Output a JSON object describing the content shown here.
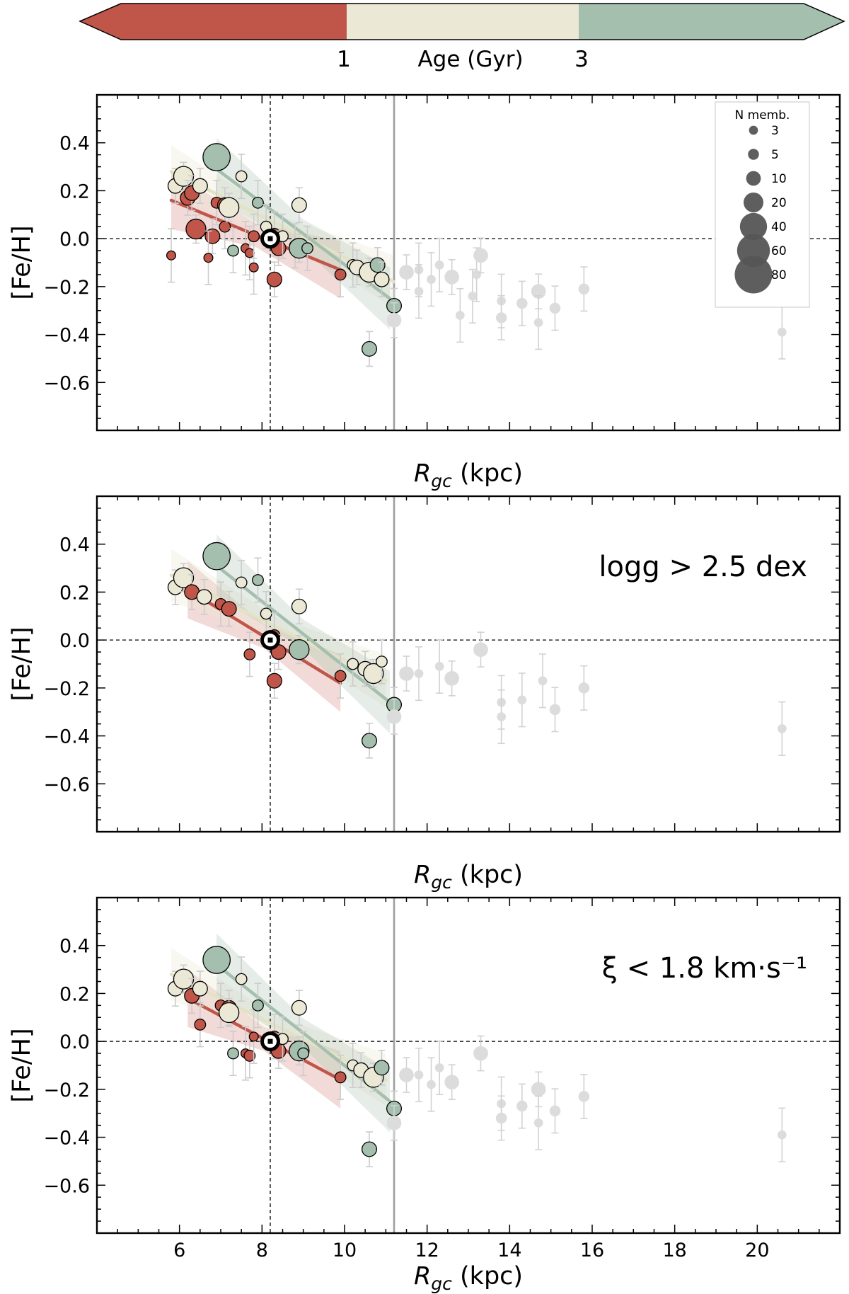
{
  "colors": {
    "young": "#c0564a",
    "intermediate": "#ebe9d5",
    "old": "#a4bfae",
    "outer": "#dcdcdc"
  },
  "colorbar": {
    "label": "Age (Gyr)",
    "ticks": [
      "1",
      "3"
    ]
  },
  "legend": {
    "title": "N memb.",
    "entries": [
      "3",
      "5",
      "10",
      "20",
      "40",
      "60",
      "80"
    ]
  },
  "chart_data": [
    {
      "type": "scatter",
      "panel": 1,
      "title": "",
      "annotation": "",
      "xlabel": "R_gc (kpc)",
      "ylabel": "[Fe/H]",
      "xlim": [
        4.0,
        22.0
      ],
      "ylim": [
        -0.8,
        0.6
      ],
      "xticks": [
        6,
        8,
        10,
        12,
        14,
        16,
        18,
        20
      ],
      "yticks": [
        0.4,
        0.2,
        0.0,
        -0.2,
        -0.4,
        -0.6
      ],
      "show_xticklabels": false,
      "sun_position": [
        8.2,
        0.0
      ],
      "outer_boundary_x": 11.2,
      "fits": [
        {
          "group": "young",
          "x": [
            5.8,
            9.9
          ],
          "y": [
            0.16,
            -0.13
          ]
        },
        {
          "group": "intermediate",
          "x": [
            5.8,
            11.2
          ],
          "y": [
            0.28,
            -0.18
          ]
        },
        {
          "group": "old",
          "x": [
            6.9,
            11.1
          ],
          "y": [
            0.29,
            -0.25
          ]
        }
      ],
      "points": [
        {
          "x": 5.8,
          "y": -0.07,
          "n": 3,
          "group": "young"
        },
        {
          "x": 5.9,
          "y": 0.22,
          "n": 10,
          "group": "intermediate"
        },
        {
          "x": 6.1,
          "y": 0.26,
          "n": 20,
          "group": "intermediate"
        },
        {
          "x": 6.2,
          "y": 0.17,
          "n": 10,
          "group": "young"
        },
        {
          "x": 6.3,
          "y": 0.19,
          "n": 10,
          "group": "young"
        },
        {
          "x": 6.5,
          "y": 0.22,
          "n": 10,
          "group": "intermediate"
        },
        {
          "x": 6.4,
          "y": 0.04,
          "n": 20,
          "group": "young"
        },
        {
          "x": 6.8,
          "y": 0.01,
          "n": 10,
          "group": "young"
        },
        {
          "x": 6.7,
          "y": -0.08,
          "n": 3,
          "group": "young"
        },
        {
          "x": 6.9,
          "y": 0.34,
          "n": 40,
          "group": "old"
        },
        {
          "x": 6.9,
          "y": 0.15,
          "n": 5,
          "group": "young"
        },
        {
          "x": 7.1,
          "y": 0.14,
          "n": 10,
          "group": "young"
        },
        {
          "x": 7.1,
          "y": 0.05,
          "n": 5,
          "group": "young"
        },
        {
          "x": 7.2,
          "y": 0.13,
          "n": 20,
          "group": "intermediate"
        },
        {
          "x": 7.3,
          "y": -0.05,
          "n": 5,
          "group": "old"
        },
        {
          "x": 7.5,
          "y": 0.26,
          "n": 5,
          "group": "intermediate"
        },
        {
          "x": 7.6,
          "y": -0.04,
          "n": 3,
          "group": "young"
        },
        {
          "x": 7.7,
          "y": -0.06,
          "n": 3,
          "group": "young"
        },
        {
          "x": 7.8,
          "y": -0.12,
          "n": 3,
          "group": "young"
        },
        {
          "x": 7.8,
          "y": 0.01,
          "n": 5,
          "group": "young"
        },
        {
          "x": 7.9,
          "y": 0.15,
          "n": 5,
          "group": "old"
        },
        {
          "x": 8.1,
          "y": 0.05,
          "n": 5,
          "group": "intermediate"
        },
        {
          "x": 8.3,
          "y": 0.02,
          "n": 5,
          "group": "young"
        },
        {
          "x": 8.3,
          "y": -0.17,
          "n": 10,
          "group": "young"
        },
        {
          "x": 8.4,
          "y": -0.04,
          "n": 10,
          "group": "young"
        },
        {
          "x": 8.5,
          "y": 0.01,
          "n": 5,
          "group": "intermediate"
        },
        {
          "x": 8.8,
          "y": -0.03,
          "n": 5,
          "group": "intermediate"
        },
        {
          "x": 8.9,
          "y": -0.04,
          "n": 20,
          "group": "old"
        },
        {
          "x": 9.1,
          "y": -0.04,
          "n": 5,
          "group": "old"
        },
        {
          "x": 8.9,
          "y": 0.14,
          "n": 10,
          "group": "intermediate"
        },
        {
          "x": 9.9,
          "y": -0.15,
          "n": 5,
          "group": "young"
        },
        {
          "x": 10.2,
          "y": -0.11,
          "n": 5,
          "group": "intermediate"
        },
        {
          "x": 10.3,
          "y": -0.12,
          "n": 10,
          "group": "intermediate"
        },
        {
          "x": 10.6,
          "y": -0.14,
          "n": 20,
          "group": "intermediate"
        },
        {
          "x": 10.8,
          "y": -0.11,
          "n": 10,
          "group": "old"
        },
        {
          "x": 10.9,
          "y": -0.17,
          "n": 10,
          "group": "intermediate"
        },
        {
          "x": 10.6,
          "y": -0.46,
          "n": 10,
          "group": "old"
        },
        {
          "x": 11.2,
          "y": -0.28,
          "n": 10,
          "group": "old"
        },
        {
          "x": 11.2,
          "y": -0.34,
          "n": 10,
          "group": "outer"
        },
        {
          "x": 11.5,
          "y": -0.14,
          "n": 10,
          "group": "outer"
        },
        {
          "x": 11.8,
          "y": -0.13,
          "n": 3,
          "group": "outer"
        },
        {
          "x": 11.8,
          "y": -0.22,
          "n": 3,
          "group": "outer"
        },
        {
          "x": 12.1,
          "y": -0.17,
          "n": 3,
          "group": "outer"
        },
        {
          "x": 12.3,
          "y": -0.11,
          "n": 3,
          "group": "outer"
        },
        {
          "x": 12.6,
          "y": -0.16,
          "n": 10,
          "group": "outer"
        },
        {
          "x": 12.8,
          "y": -0.32,
          "n": 3,
          "group": "outer"
        },
        {
          "x": 13.1,
          "y": -0.24,
          "n": 3,
          "group": "outer"
        },
        {
          "x": 13.2,
          "y": -0.15,
          "n": 3,
          "group": "outer"
        },
        {
          "x": 13.3,
          "y": -0.07,
          "n": 10,
          "group": "outer"
        },
        {
          "x": 13.8,
          "y": -0.26,
          "n": 3,
          "group": "outer"
        },
        {
          "x": 13.8,
          "y": -0.33,
          "n": 5,
          "group": "outer"
        },
        {
          "x": 14.3,
          "y": -0.27,
          "n": 5,
          "group": "outer"
        },
        {
          "x": 14.7,
          "y": -0.22,
          "n": 10,
          "group": "outer"
        },
        {
          "x": 14.7,
          "y": -0.35,
          "n": 3,
          "group": "outer"
        },
        {
          "x": 15.1,
          "y": -0.29,
          "n": 5,
          "group": "outer"
        },
        {
          "x": 15.8,
          "y": -0.21,
          "n": 5,
          "group": "outer"
        },
        {
          "x": 20.6,
          "y": -0.39,
          "n": 3,
          "group": "outer"
        }
      ]
    },
    {
      "type": "scatter",
      "panel": 2,
      "title": "",
      "annotation": "logg > 2.5 dex",
      "xlabel": "R_gc (kpc)",
      "ylabel": "[Fe/H]",
      "xlim": [
        4.0,
        22.0
      ],
      "ylim": [
        -0.8,
        0.6
      ],
      "xticks": [
        6,
        8,
        10,
        12,
        14,
        16,
        18,
        20
      ],
      "yticks": [
        0.4,
        0.2,
        0.0,
        -0.2,
        -0.4,
        -0.6
      ],
      "show_xticklabels": false,
      "sun_position": [
        8.2,
        0.0
      ],
      "outer_boundary_x": 11.2,
      "fits": [
        {
          "group": "young",
          "x": [
            6.2,
            9.9
          ],
          "y": [
            0.21,
            -0.18
          ]
        },
        {
          "group": "intermediate",
          "x": [
            5.8,
            11.0
          ],
          "y": [
            0.27,
            -0.17
          ]
        },
        {
          "group": "old",
          "x": [
            6.9,
            11.1
          ],
          "y": [
            0.31,
            -0.26
          ]
        }
      ],
      "points": [
        {
          "x": 5.9,
          "y": 0.22,
          "n": 10,
          "group": "intermediate"
        },
        {
          "x": 6.1,
          "y": 0.26,
          "n": 20,
          "group": "intermediate"
        },
        {
          "x": 6.3,
          "y": 0.2,
          "n": 10,
          "group": "young"
        },
        {
          "x": 6.6,
          "y": 0.18,
          "n": 10,
          "group": "intermediate"
        },
        {
          "x": 6.9,
          "y": 0.35,
          "n": 40,
          "group": "old"
        },
        {
          "x": 7.0,
          "y": 0.15,
          "n": 5,
          "group": "young"
        },
        {
          "x": 7.2,
          "y": 0.13,
          "n": 10,
          "group": "young"
        },
        {
          "x": 7.5,
          "y": 0.24,
          "n": 5,
          "group": "intermediate"
        },
        {
          "x": 7.7,
          "y": -0.06,
          "n": 5,
          "group": "young"
        },
        {
          "x": 7.9,
          "y": 0.25,
          "n": 5,
          "group": "old"
        },
        {
          "x": 8.1,
          "y": 0.11,
          "n": 5,
          "group": "intermediate"
        },
        {
          "x": 8.3,
          "y": 0.02,
          "n": 5,
          "group": "young"
        },
        {
          "x": 8.3,
          "y": -0.17,
          "n": 10,
          "group": "young"
        },
        {
          "x": 8.4,
          "y": -0.05,
          "n": 10,
          "group": "young"
        },
        {
          "x": 8.9,
          "y": -0.04,
          "n": 20,
          "group": "old"
        },
        {
          "x": 8.9,
          "y": 0.14,
          "n": 10,
          "group": "intermediate"
        },
        {
          "x": 9.9,
          "y": -0.15,
          "n": 5,
          "group": "young"
        },
        {
          "x": 10.2,
          "y": -0.1,
          "n": 5,
          "group": "intermediate"
        },
        {
          "x": 10.5,
          "y": -0.12,
          "n": 10,
          "group": "intermediate"
        },
        {
          "x": 10.7,
          "y": -0.14,
          "n": 20,
          "group": "intermediate"
        },
        {
          "x": 10.9,
          "y": -0.09,
          "n": 5,
          "group": "intermediate"
        },
        {
          "x": 10.6,
          "y": -0.42,
          "n": 10,
          "group": "old"
        },
        {
          "x": 11.2,
          "y": -0.27,
          "n": 10,
          "group": "old"
        },
        {
          "x": 11.2,
          "y": -0.32,
          "n": 10,
          "group": "outer"
        },
        {
          "x": 11.5,
          "y": -0.14,
          "n": 10,
          "group": "outer"
        },
        {
          "x": 11.8,
          "y": -0.14,
          "n": 3,
          "group": "outer"
        },
        {
          "x": 12.3,
          "y": -0.11,
          "n": 3,
          "group": "outer"
        },
        {
          "x": 12.6,
          "y": -0.16,
          "n": 10,
          "group": "outer"
        },
        {
          "x": 13.3,
          "y": -0.04,
          "n": 10,
          "group": "outer"
        },
        {
          "x": 13.8,
          "y": -0.26,
          "n": 3,
          "group": "outer"
        },
        {
          "x": 13.8,
          "y": -0.32,
          "n": 3,
          "group": "outer"
        },
        {
          "x": 14.3,
          "y": -0.25,
          "n": 3,
          "group": "outer"
        },
        {
          "x": 14.8,
          "y": -0.17,
          "n": 3,
          "group": "outer"
        },
        {
          "x": 15.1,
          "y": -0.29,
          "n": 5,
          "group": "outer"
        },
        {
          "x": 15.8,
          "y": -0.2,
          "n": 5,
          "group": "outer"
        },
        {
          "x": 20.6,
          "y": -0.37,
          "n": 3,
          "group": "outer"
        }
      ]
    },
    {
      "type": "scatter",
      "panel": 3,
      "title": "",
      "annotation": "ξ < 1.8 km·s⁻¹",
      "xlabel": "R_gc (kpc)",
      "ylabel": "[Fe/H]",
      "xlim": [
        4.0,
        22.0
      ],
      "ylim": [
        -0.8,
        0.6
      ],
      "xticks": [
        6,
        8,
        10,
        12,
        14,
        16,
        18,
        20
      ],
      "yticks": [
        0.4,
        0.2,
        0.0,
        -0.2,
        -0.4,
        -0.6
      ],
      "show_xticklabels": true,
      "sun_position": [
        8.2,
        0.0
      ],
      "outer_boundary_x": 11.2,
      "fits": [
        {
          "group": "young",
          "x": [
            6.2,
            9.9
          ],
          "y": [
            0.18,
            -0.16
          ]
        },
        {
          "group": "intermediate",
          "x": [
            5.8,
            11.0
          ],
          "y": [
            0.28,
            -0.16
          ]
        },
        {
          "group": "old",
          "x": [
            6.9,
            11.1
          ],
          "y": [
            0.32,
            -0.25
          ]
        }
      ],
      "points": [
        {
          "x": 5.9,
          "y": 0.22,
          "n": 10,
          "group": "intermediate"
        },
        {
          "x": 6.1,
          "y": 0.26,
          "n": 20,
          "group": "intermediate"
        },
        {
          "x": 6.3,
          "y": 0.19,
          "n": 10,
          "group": "young"
        },
        {
          "x": 6.5,
          "y": 0.07,
          "n": 5,
          "group": "young"
        },
        {
          "x": 6.5,
          "y": 0.22,
          "n": 10,
          "group": "intermediate"
        },
        {
          "x": 6.9,
          "y": 0.34,
          "n": 40,
          "group": "old"
        },
        {
          "x": 7.0,
          "y": 0.15,
          "n": 5,
          "group": "young"
        },
        {
          "x": 7.2,
          "y": 0.14,
          "n": 10,
          "group": "young"
        },
        {
          "x": 7.2,
          "y": 0.12,
          "n": 20,
          "group": "intermediate"
        },
        {
          "x": 7.3,
          "y": -0.05,
          "n": 5,
          "group": "old"
        },
        {
          "x": 7.5,
          "y": 0.26,
          "n": 5,
          "group": "intermediate"
        },
        {
          "x": 7.6,
          "y": -0.05,
          "n": 3,
          "group": "young"
        },
        {
          "x": 7.7,
          "y": -0.06,
          "n": 5,
          "group": "young"
        },
        {
          "x": 7.8,
          "y": 0.02,
          "n": 3,
          "group": "young"
        },
        {
          "x": 7.9,
          "y": 0.15,
          "n": 5,
          "group": "old"
        },
        {
          "x": 8.3,
          "y": 0.02,
          "n": 5,
          "group": "young"
        },
        {
          "x": 8.4,
          "y": -0.04,
          "n": 10,
          "group": "young"
        },
        {
          "x": 8.5,
          "y": 0.01,
          "n": 5,
          "group": "intermediate"
        },
        {
          "x": 8.9,
          "y": -0.04,
          "n": 20,
          "group": "old"
        },
        {
          "x": 9.0,
          "y": -0.05,
          "n": 5,
          "group": "old"
        },
        {
          "x": 8.9,
          "y": 0.14,
          "n": 10,
          "group": "intermediate"
        },
        {
          "x": 9.9,
          "y": -0.15,
          "n": 5,
          "group": "young"
        },
        {
          "x": 10.2,
          "y": -0.1,
          "n": 5,
          "group": "intermediate"
        },
        {
          "x": 10.4,
          "y": -0.12,
          "n": 10,
          "group": "intermediate"
        },
        {
          "x": 10.7,
          "y": -0.15,
          "n": 20,
          "group": "intermediate"
        },
        {
          "x": 10.9,
          "y": -0.11,
          "n": 10,
          "group": "old"
        },
        {
          "x": 10.6,
          "y": -0.45,
          "n": 10,
          "group": "old"
        },
        {
          "x": 11.2,
          "y": -0.28,
          "n": 10,
          "group": "old"
        },
        {
          "x": 11.2,
          "y": -0.34,
          "n": 10,
          "group": "outer"
        },
        {
          "x": 11.5,
          "y": -0.14,
          "n": 10,
          "group": "outer"
        },
        {
          "x": 11.8,
          "y": -0.14,
          "n": 3,
          "group": "outer"
        },
        {
          "x": 12.1,
          "y": -0.18,
          "n": 3,
          "group": "outer"
        },
        {
          "x": 12.3,
          "y": -0.11,
          "n": 3,
          "group": "outer"
        },
        {
          "x": 12.6,
          "y": -0.17,
          "n": 10,
          "group": "outer"
        },
        {
          "x": 13.3,
          "y": -0.05,
          "n": 10,
          "group": "outer"
        },
        {
          "x": 13.8,
          "y": -0.26,
          "n": 3,
          "group": "outer"
        },
        {
          "x": 13.8,
          "y": -0.32,
          "n": 5,
          "group": "outer"
        },
        {
          "x": 14.3,
          "y": -0.27,
          "n": 5,
          "group": "outer"
        },
        {
          "x": 14.7,
          "y": -0.2,
          "n": 10,
          "group": "outer"
        },
        {
          "x": 14.7,
          "y": -0.34,
          "n": 3,
          "group": "outer"
        },
        {
          "x": 15.1,
          "y": -0.29,
          "n": 5,
          "group": "outer"
        },
        {
          "x": 15.8,
          "y": -0.23,
          "n": 5,
          "group": "outer"
        },
        {
          "x": 20.6,
          "y": -0.39,
          "n": 3,
          "group": "outer"
        }
      ]
    }
  ]
}
